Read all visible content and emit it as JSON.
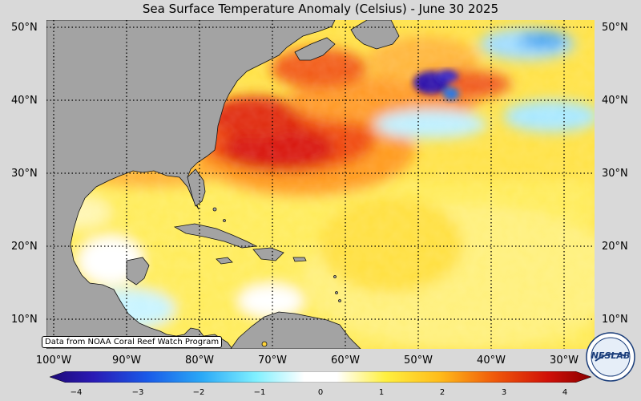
{
  "title": "Sea Surface Temperature Anomaly (Celsius) - June 30 2025",
  "credit": "Data from NOAA Coral Reef Watch Program",
  "lat_labels": [
    "50°N",
    "40°N",
    "30°N",
    "20°N",
    "10°N"
  ],
  "lon_labels": [
    "100°W",
    "90°W",
    "80°W",
    "70°W",
    "60°W",
    "50°W",
    "40°W",
    "30°W"
  ],
  "colorbar": {
    "ticks": [
      "−4",
      "−3",
      "−2",
      "−1",
      "0",
      "1",
      "2",
      "3",
      "4"
    ],
    "range": [
      -4,
      4
    ]
  },
  "logo": {
    "text": "NESLAB"
  },
  "colors": {
    "land": "#a0a0a0",
    "ocean_warm": "#ffd43a",
    "ocean_hot": "#e8200a",
    "ocean_cold": "#2a1aa0"
  }
}
